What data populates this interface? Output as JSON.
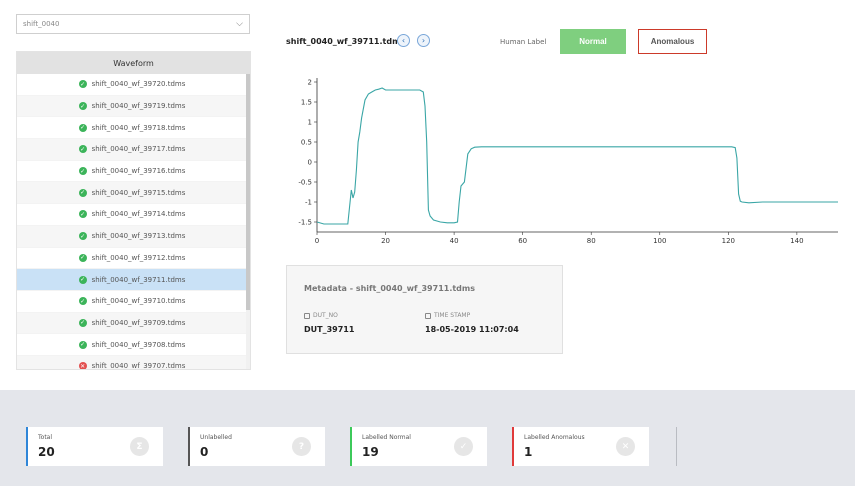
{
  "selector": {
    "value": "shift_0040",
    "chevron_icon": "chevron-down-icon"
  },
  "list": {
    "header": "Waveform",
    "items": [
      {
        "name": "shift_0040_wf_39720.tdms",
        "status": "ok"
      },
      {
        "name": "shift_0040_wf_39719.tdms",
        "status": "ok"
      },
      {
        "name": "shift_0040_wf_39718.tdms",
        "status": "ok"
      },
      {
        "name": "shift_0040_wf_39717.tdms",
        "status": "ok"
      },
      {
        "name": "shift_0040_wf_39716.tdms",
        "status": "ok"
      },
      {
        "name": "shift_0040_wf_39715.tdms",
        "status": "ok"
      },
      {
        "name": "shift_0040_wf_39714.tdms",
        "status": "ok"
      },
      {
        "name": "shift_0040_wf_39713.tdms",
        "status": "ok"
      },
      {
        "name": "shift_0040_wf_39712.tdms",
        "status": "ok"
      },
      {
        "name": "shift_0040_wf_39711.tdms",
        "status": "ok",
        "selected": true
      },
      {
        "name": "shift_0040_wf_39710.tdms",
        "status": "ok"
      },
      {
        "name": "shift_0040_wf_39709.tdms",
        "status": "ok"
      },
      {
        "name": "shift_0040_wf_39708.tdms",
        "status": "ok"
      },
      {
        "name": "shift_0040_wf_39707.tdms",
        "status": "bad"
      }
    ]
  },
  "viewer": {
    "title": "shift_0040_wf_39711.tdms",
    "prev_icon": "chevron-left-icon",
    "next_icon": "chevron-right-icon",
    "human_label": "Human Label",
    "normal_label": "Normal",
    "anomalous_label": "Anomalous",
    "normal_color": "#7fcf7f",
    "anomalous_border_color": "#cc3a2a"
  },
  "chart_data": {
    "type": "line",
    "line_color": "#3aa6a6",
    "xlim": [
      0,
      152
    ],
    "ylim": [
      -1.75,
      2.1
    ],
    "xticks": [
      0,
      20,
      40,
      60,
      80,
      100,
      120,
      140
    ],
    "yticks": [
      -1.5,
      -1,
      -0.5,
      0,
      0.5,
      1,
      1.5,
      2
    ],
    "ytick_labels": [
      "-1.5",
      "-1",
      "-0.5",
      "0",
      "0.5",
      "1",
      "1.5",
      "2"
    ],
    "series": [
      {
        "x": [
          0,
          2,
          5,
          8,
          9,
          10,
          10.5,
          11,
          11.5,
          12,
          12.5,
          13,
          14,
          15,
          16,
          17,
          18,
          19,
          20,
          25,
          30,
          31,
          31.5,
          32,
          32.5,
          33,
          34,
          36,
          38,
          40,
          41,
          41.5,
          42,
          43,
          44,
          45,
          46,
          48,
          50,
          60,
          70,
          80,
          90,
          100,
          110,
          115,
          118,
          120,
          121,
          122,
          122.5,
          123,
          123.5,
          124,
          126,
          130,
          140,
          152
        ],
        "y": [
          -1.5,
          -1.55,
          -1.55,
          -1.55,
          -1.55,
          -0.7,
          -0.9,
          -0.75,
          -0.2,
          0.5,
          0.75,
          1.1,
          1.55,
          1.7,
          1.75,
          1.8,
          1.82,
          1.85,
          1.8,
          1.8,
          1.8,
          1.75,
          1.4,
          0.5,
          -1.2,
          -1.35,
          -1.45,
          -1.5,
          -1.52,
          -1.52,
          -1.5,
          -1.0,
          -0.6,
          -0.5,
          0.2,
          0.33,
          0.37,
          0.38,
          0.38,
          0.38,
          0.38,
          0.38,
          0.38,
          0.38,
          0.38,
          0.38,
          0.38,
          0.38,
          0.38,
          0.36,
          0.1,
          -0.8,
          -0.98,
          -1.0,
          -1.02,
          -1.0,
          -1.0,
          -1.0
        ]
      }
    ]
  },
  "metadata": {
    "title": "Metadata - shift_0040_wf_39711.tdms",
    "dut_label": "DUT_NO",
    "dut_value": "DUT_39711",
    "time_label": "TIME STAMP",
    "time_value": "18-05-2019 11:07:04"
  },
  "stats": [
    {
      "label": "Total",
      "value": "20",
      "color": "#2f86d8",
      "icon": "sum-icon",
      "glyph": "Σ"
    },
    {
      "label": "Unlabelled",
      "value": "0",
      "color": "#555555",
      "icon": "question-icon",
      "glyph": "?"
    },
    {
      "label": "Labelled Normal",
      "value": "19",
      "color": "#3cc95a",
      "icon": "check-icon",
      "glyph": "✓"
    },
    {
      "label": "Labelled Anomalous",
      "value": "1",
      "color": "#e03a3a",
      "icon": "close-icon",
      "glyph": "✕"
    }
  ]
}
